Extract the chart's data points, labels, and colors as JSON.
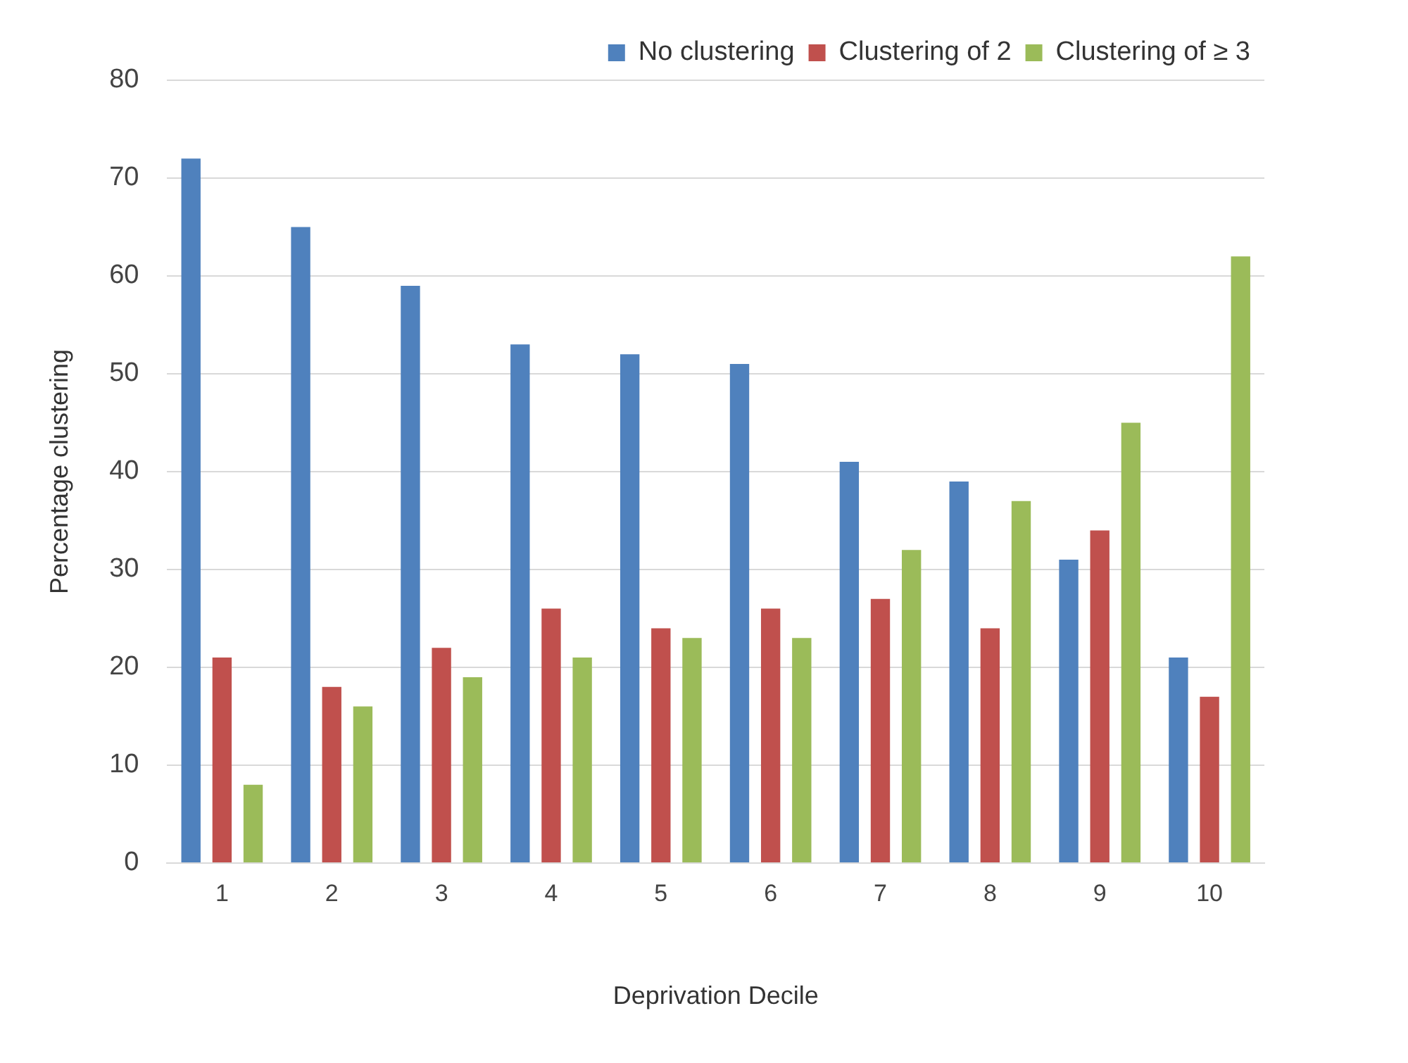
{
  "chart_data": {
    "type": "bar",
    "xlabel": "Deprivation Decile",
    "ylabel": "Percentage clustering",
    "categories": [
      "1",
      "2",
      "3",
      "4",
      "5",
      "6",
      "7",
      "8",
      "9",
      "10"
    ],
    "series": [
      {
        "name": "No clustering",
        "color": "#4f81bd",
        "values": [
          72,
          65,
          59,
          53,
          52,
          51,
          41,
          39,
          31,
          21
        ]
      },
      {
        "name": "Clustering of 2",
        "color": "#c0504d",
        "values": [
          21,
          18,
          22,
          26,
          24,
          26,
          27,
          24,
          34,
          17
        ]
      },
      {
        "name": "Clustering of ≥ 3",
        "color": "#9bbb59",
        "values": [
          8,
          16,
          19,
          21,
          23,
          23,
          32,
          37,
          45,
          62
        ]
      }
    ],
    "ylim": [
      0,
      80
    ],
    "yticks": [
      0,
      10,
      20,
      30,
      40,
      50,
      60,
      70,
      80
    ],
    "grid": "y",
    "legend": "top right"
  }
}
